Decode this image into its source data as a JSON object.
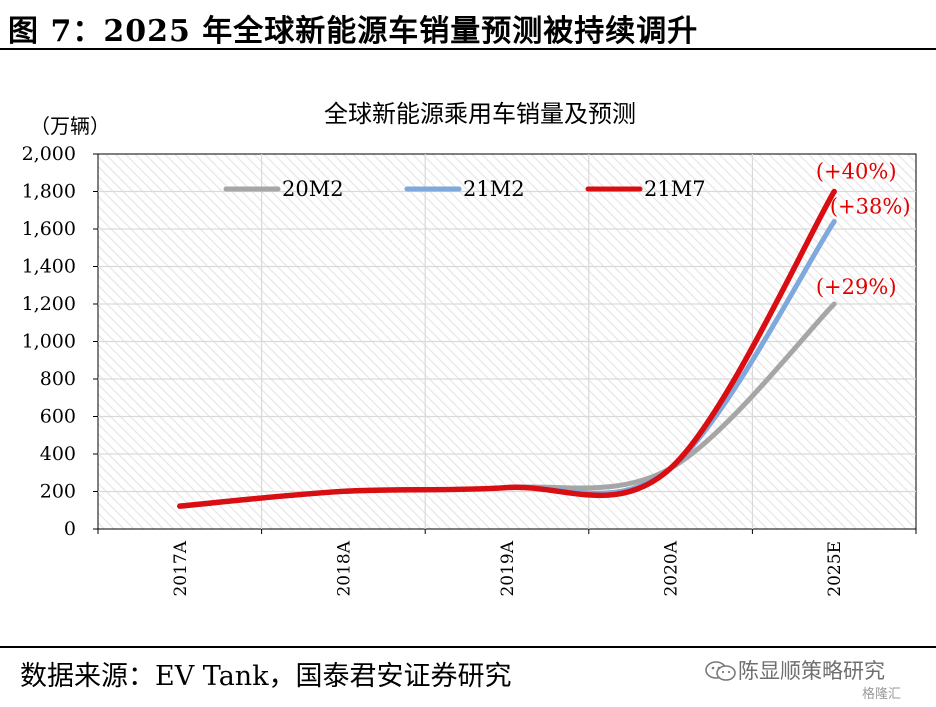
{
  "figure": {
    "title": "图 7：2025 年全球新能源车销量预测被持续调升",
    "source": "数据来源：EV Tank，国泰君安证券研究",
    "watermark": "陈显顺策略研究",
    "watermark_sub": "格隆汇"
  },
  "chart_data": {
    "type": "line",
    "title": "全球新能源乘用车销量及预测",
    "unit_label": "（万辆）",
    "categories": [
      "2017A",
      "2018A",
      "2019A",
      "2020A",
      "2025E"
    ],
    "y_ticks": [
      "0",
      "200",
      "400",
      "600",
      "800",
      "1,000",
      "1,200",
      "1,400",
      "1,600",
      "1,800",
      "2,000"
    ],
    "ylim": [
      0,
      2000
    ],
    "grid": true,
    "smooth": true,
    "legend_position": "top",
    "series": [
      {
        "name": "20M2",
        "color": "#a6a6a6",
        "values": [
          122,
          201,
          221,
          324,
          1200
        ],
        "end_label": "(+29%)"
      },
      {
        "name": "21M2",
        "color": "#7fa8dc",
        "values": [
          122,
          201,
          221,
          324,
          1640
        ],
        "end_label": "(+38%)"
      },
      {
        "name": "21M7",
        "color": "#d90e12",
        "values": [
          122,
          201,
          221,
          324,
          1800
        ],
        "end_label": "(+40%)"
      }
    ]
  },
  "colors": {
    "annotation": "#e00000",
    "grid": "#d9d9d9",
    "hatch": "#e6e6e6"
  }
}
